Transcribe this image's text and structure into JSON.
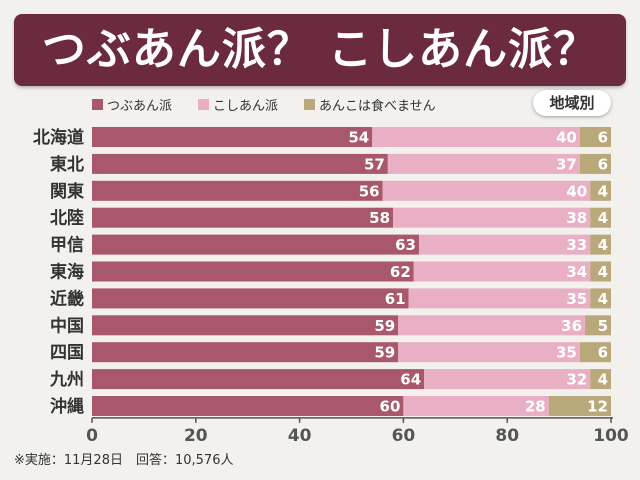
{
  "header": {
    "title": "つぶあん派？ こしあん派？",
    "badge": "地域別"
  },
  "legend": [
    {
      "label": "つぶあん派",
      "color": "#a9576b"
    },
    {
      "label": "こしあん派",
      "color": "#e9afc5"
    },
    {
      "label": "あんこは食べません",
      "color": "#b9a87a"
    }
  ],
  "chart_data": {
    "type": "bar",
    "orientation": "horizontal",
    "stacked": true,
    "title": "つぶあん派？ こしあん派？",
    "categories": [
      "北海道",
      "東北",
      "関東",
      "北陸",
      "甲信",
      "東海",
      "近畿",
      "中国",
      "四国",
      "九州",
      "沖縄"
    ],
    "series": [
      {
        "name": "つぶあん派",
        "color": "#a9576b",
        "values": [
          54,
          57,
          56,
          58,
          63,
          62,
          61,
          59,
          59,
          64,
          60
        ]
      },
      {
        "name": "こしあん派",
        "color": "#e9afc5",
        "values": [
          40,
          37,
          40,
          38,
          33,
          34,
          35,
          36,
          35,
          32,
          28
        ]
      },
      {
        "name": "あんこは食べません",
        "color": "#b9a87a",
        "values": [
          6,
          6,
          4,
          4,
          4,
          4,
          4,
          5,
          6,
          4,
          12
        ]
      }
    ],
    "xlim": [
      0,
      100
    ],
    "xticks": [
      0,
      20,
      40,
      60,
      80,
      100
    ],
    "grid": false,
    "legend_position": "top-left"
  },
  "footnote": "※実施：11月28日　回答：10,576人"
}
